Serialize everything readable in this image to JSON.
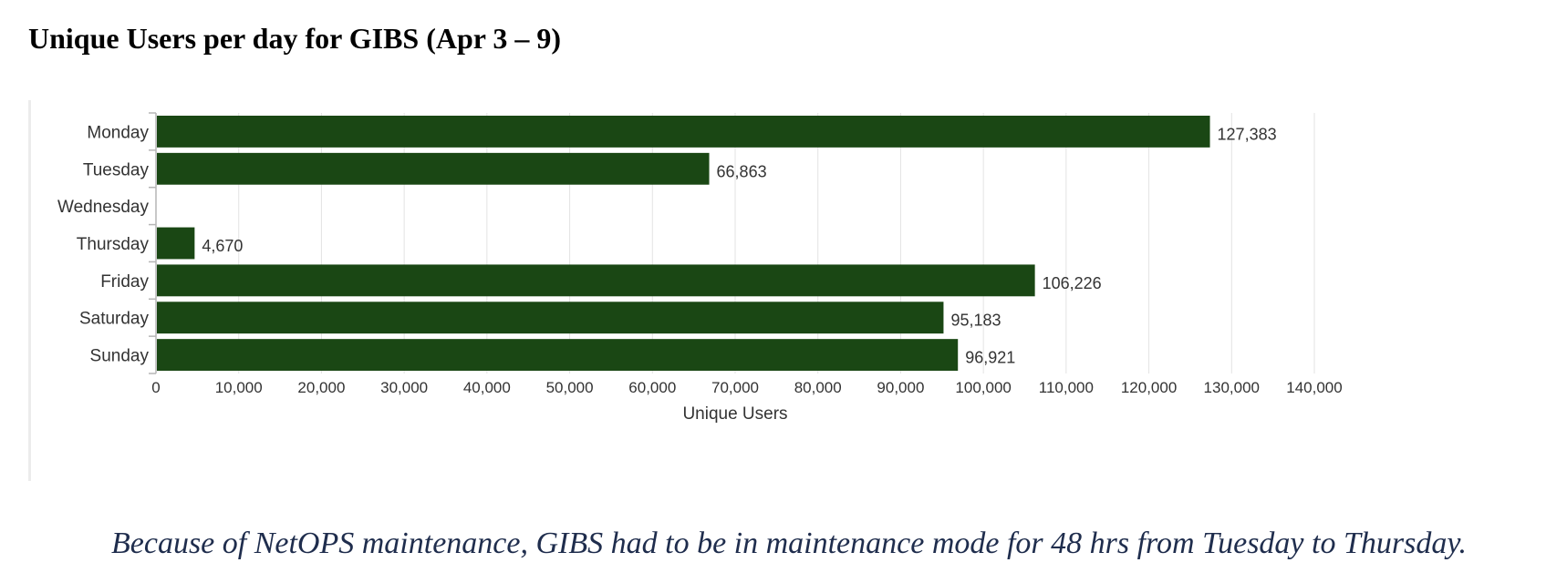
{
  "title": "Unique Users per day for GIBS (Apr 3 – 9)",
  "note": "Because of NetOPS maintenance, GIBS had to be in maintenance mode for 48 hrs from Tuesday to Thursday.",
  "colors": {
    "bar": "#1a4714",
    "grid": "#e3e3e3",
    "axis": "#b5b5b5"
  },
  "chart_data": {
    "type": "bar",
    "orientation": "horizontal",
    "categories": [
      "Monday",
      "Tuesday",
      "Wednesday",
      "Thursday",
      "Friday",
      "Saturday",
      "Sunday"
    ],
    "values": [
      127383,
      66863,
      0,
      4670,
      106226,
      95183,
      96921
    ],
    "value_labels": [
      "127,383",
      "66,863",
      "",
      "4,670",
      "106,226",
      "95,183",
      "96,921"
    ],
    "xlabel": "Unique Users",
    "ylabel": "",
    "xlim": [
      0,
      140000
    ],
    "xticks": [
      0,
      10000,
      20000,
      30000,
      40000,
      50000,
      60000,
      70000,
      80000,
      90000,
      100000,
      110000,
      120000,
      130000,
      140000
    ],
    "xtick_labels": [
      "0",
      "10,000",
      "20,000",
      "30,000",
      "40,000",
      "50,000",
      "60,000",
      "70,000",
      "80,000",
      "90,000",
      "100,000",
      "110,000",
      "120,000",
      "130,000",
      "140,000"
    ],
    "grid": true,
    "legend": "none"
  }
}
